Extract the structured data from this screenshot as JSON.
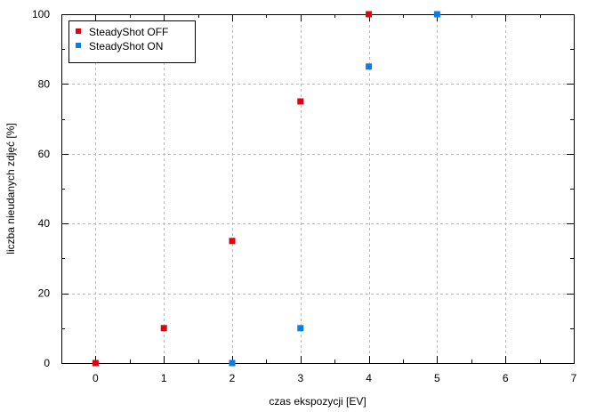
{
  "chart_data": {
    "type": "scatter",
    "xlabel": "czas ekspozycji [EV]",
    "ylabel": "liczba nieudanych zdjęć [%]",
    "xlim": [
      -0.5,
      7
    ],
    "ylim": [
      0,
      100
    ],
    "xticks": [
      0,
      1,
      2,
      3,
      4,
      5,
      6,
      7
    ],
    "yticks": [
      0,
      20,
      40,
      60,
      80,
      100
    ],
    "grid": true,
    "legend_position": "top-left",
    "series": [
      {
        "name": "SteadyShot OFF",
        "color": "#e3000f",
        "points": [
          {
            "x": 0,
            "y": 0
          },
          {
            "x": 1,
            "y": 10
          },
          {
            "x": 2,
            "y": 35
          },
          {
            "x": 3,
            "y": 75
          },
          {
            "x": 4,
            "y": 100
          }
        ]
      },
      {
        "name": "SteadyShot ON",
        "color": "#0a7ee8",
        "points": [
          {
            "x": 2,
            "y": 0
          },
          {
            "x": 3,
            "y": 10
          },
          {
            "x": 4,
            "y": 85
          },
          {
            "x": 5,
            "y": 100
          }
        ]
      }
    ]
  }
}
